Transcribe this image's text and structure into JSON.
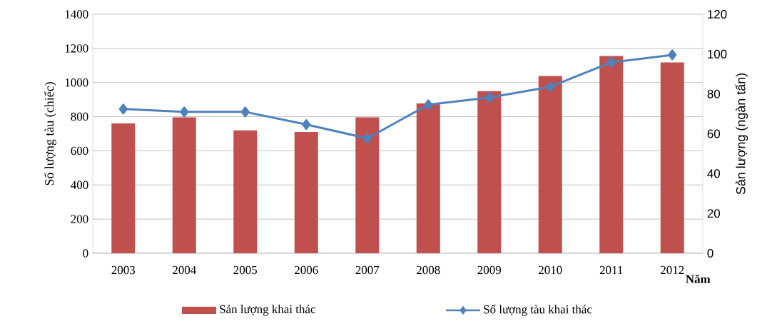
{
  "chart_data": {
    "type": "bar",
    "xlabel": "Năm",
    "ylabel": "Số lượng tàu (chiếc)",
    "y2label": "Sản lượng (ngàn tấn)",
    "categories": [
      "2003",
      "2004",
      "2005",
      "2006",
      "2007",
      "2008",
      "2009",
      "2010",
      "2011",
      "2012"
    ],
    "series": [
      {
        "name": "Sản lượng khai thác",
        "axis": "y2",
        "color": "#c0504d",
        "values": [
          65.2,
          68.2,
          61.7,
          60.9,
          68.2,
          75.2,
          81.4,
          89.0,
          99.0,
          95.8
        ]
      },
      {
        "name": "Số lượng tàu khai thác",
        "type": "line",
        "axis": "y",
        "color": "#4f81bd",
        "marker": "diamond",
        "line_style": "solid",
        "values": [
          845,
          828,
          828,
          754,
          673,
          870,
          912,
          975,
          1118,
          1162
        ]
      }
    ],
    "ylim": [
      0,
      1400
    ],
    "yticks": [
      0,
      200,
      400,
      600,
      800,
      1000,
      1200,
      1400
    ],
    "y2lim": [
      0,
      120
    ],
    "y2ticks": [
      0,
      20,
      40,
      60,
      80,
      100,
      120
    ],
    "grid": "y",
    "legend": "bottom"
  }
}
